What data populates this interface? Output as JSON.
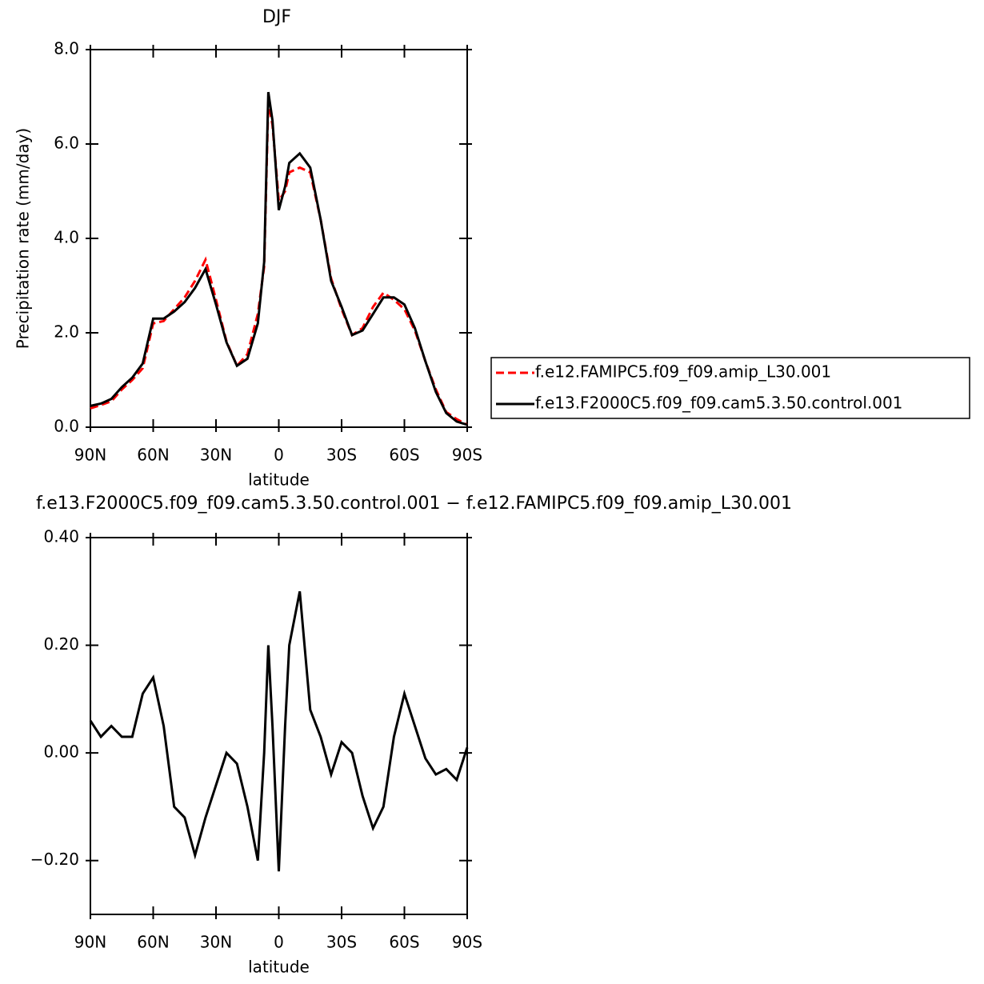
{
  "chart_data": [
    {
      "type": "line",
      "title": "DJF",
      "xlabel": "latitude",
      "ylabel": "Precipitation rate (mm/day)",
      "x": [
        90,
        85,
        80,
        75,
        70,
        65,
        60,
        55,
        50,
        45,
        40,
        35,
        30,
        25,
        20,
        15,
        10,
        7,
        5,
        3,
        0,
        -3,
        -5,
        -10,
        -15,
        -20,
        -25,
        -30,
        -35,
        -40,
        -45,
        -50,
        -55,
        -60,
        -65,
        -70,
        -75,
        -80,
        -85,
        -90
      ],
      "xlim": [
        90,
        -90
      ],
      "xticks": [
        {
          "value": 90,
          "label": "90N"
        },
        {
          "value": 60,
          "label": "60N"
        },
        {
          "value": 30,
          "label": "30N"
        },
        0,
        {
          "value": -30,
          "label": "30S"
        },
        {
          "value": -60,
          "label": "60S"
        },
        {
          "value": -90,
          "label": "90S"
        }
      ],
      "ylim": [
        0,
        8
      ],
      "yticks": [
        {
          "value": 0,
          "label": "0.0"
        },
        {
          "value": 2,
          "label": "2.0"
        },
        {
          "value": 4,
          "label": "4.0"
        },
        {
          "value": 6,
          "label": "6.0"
        },
        {
          "value": 8,
          "label": "8.0"
        }
      ],
      "legend": "right",
      "series": [
        {
          "name": "f.e12.FAMIPC5.f09_f09.amip_L30.001",
          "color": "#ff0000",
          "linestyle": "dashed",
          "values": [
            0.4,
            0.47,
            0.55,
            0.8,
            1.0,
            1.25,
            2.2,
            2.25,
            2.5,
            2.75,
            3.1,
            3.55,
            2.7,
            1.82,
            1.3,
            1.55,
            2.4,
            3.4,
            6.9,
            6.4,
            4.8,
            5.0,
            5.4,
            5.5,
            5.4,
            4.4,
            3.15,
            2.5,
            1.95,
            2.1,
            2.55,
            2.85,
            2.7,
            2.5,
            2.05,
            1.4,
            0.8,
            0.32,
            0.17,
            0.05
          ]
        },
        {
          "name": "f.e13.F2000C5.f09_f09.cam5.3.50.control.001",
          "color": "#000000",
          "linestyle": "solid",
          "values": [
            0.45,
            0.5,
            0.6,
            0.85,
            1.05,
            1.35,
            2.3,
            2.3,
            2.45,
            2.65,
            2.95,
            3.35,
            2.6,
            1.8,
            1.3,
            1.45,
            2.2,
            3.5,
            7.1,
            6.5,
            4.6,
            5.1,
            5.6,
            5.8,
            5.5,
            4.4,
            3.1,
            2.55,
            1.95,
            2.05,
            2.4,
            2.75,
            2.75,
            2.6,
            2.1,
            1.4,
            0.75,
            0.3,
            0.12,
            0.05
          ]
        }
      ]
    },
    {
      "type": "line",
      "title": "f.e13.F2000C5.f09_f09.cam5.3.50.control.001 − f.e12.FAMIPC5.f09_f09.amip_L30.001",
      "xlabel": "latitude",
      "x": [
        90,
        85,
        80,
        75,
        70,
        65,
        60,
        55,
        50,
        45,
        40,
        35,
        30,
        25,
        20,
        15,
        10,
        7,
        5,
        3,
        0,
        -3,
        -5,
        -10,
        -15,
        -20,
        -25,
        -30,
        -35,
        -40,
        -45,
        -50,
        -55,
        -60,
        -65,
        -70,
        -75,
        -80,
        -85,
        -90
      ],
      "xlim": [
        90,
        -90
      ],
      "xticks": [
        {
          "value": 90,
          "label": "90N"
        },
        {
          "value": 60,
          "label": "60N"
        },
        {
          "value": 30,
          "label": "30N"
        },
        0,
        {
          "value": -30,
          "label": "30S"
        },
        {
          "value": -60,
          "label": "60S"
        },
        {
          "value": -90,
          "label": "90S"
        }
      ],
      "ylim": [
        -0.3,
        0.4
      ],
      "yticks": [
        {
          "value": -0.2,
          "label": "−0.20"
        },
        {
          "value": 0,
          "label": "0.00"
        },
        {
          "value": 0.2,
          "label": "0.20"
        },
        {
          "value": 0.4,
          "label": "0.40"
        }
      ],
      "color": "#000000",
      "values": [
        0.06,
        0.03,
        0.05,
        0.03,
        0.03,
        0.11,
        0.14,
        0.05,
        -0.1,
        -0.12,
        -0.19,
        -0.12,
        -0.06,
        0.0,
        -0.02,
        -0.1,
        -0.2,
        0.0,
        0.2,
        0.05,
        -0.22,
        0.05,
        0.2,
        0.3,
        0.08,
        0.03,
        -0.04,
        0.02,
        0.0,
        -0.08,
        -0.14,
        -0.1,
        0.03,
        0.11,
        0.05,
        -0.01,
        -0.04,
        -0.03,
        -0.05,
        0.01
      ]
    }
  ]
}
